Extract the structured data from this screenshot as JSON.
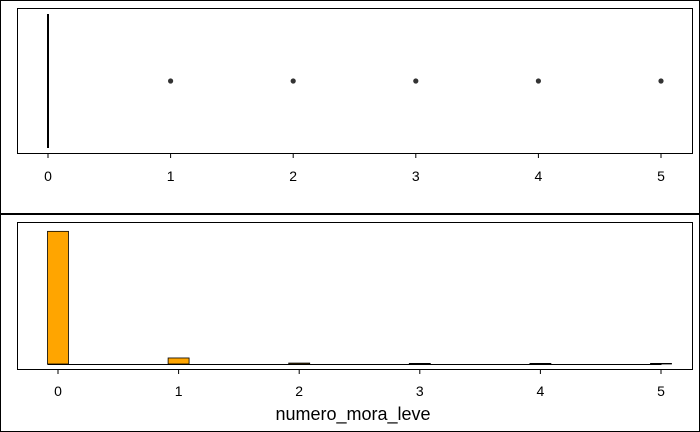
{
  "chart_data": [
    {
      "type": "boxplot",
      "orientation": "horizontal",
      "xlim": [
        -0.2,
        5.2
      ],
      "ticks": [
        "0",
        "1",
        "2",
        "3",
        "4",
        "5"
      ],
      "box": {
        "min": 0,
        "q1": 0,
        "median": 0,
        "q3": 0,
        "max": 0
      },
      "outliers": [
        1,
        2,
        3,
        4,
        5
      ],
      "title": "",
      "xlabel": "",
      "ylabel": ""
    },
    {
      "type": "bar",
      "subtype": "histogram",
      "categories": [
        "0",
        "1",
        "2",
        "3",
        "4",
        "5"
      ],
      "x": [
        0,
        1,
        2,
        3,
        4,
        5
      ],
      "values": [
        0.99,
        0.045,
        0.007,
        0.001,
        0.0005,
        0.0005
      ],
      "xlim": [
        -0.2,
        5.2
      ],
      "ylim": [
        0,
        1
      ],
      "ticks": [
        "0",
        "1",
        "2",
        "3",
        "4",
        "5"
      ],
      "bar_color": "#FFA500",
      "title": "",
      "xlabel": "numero_mora_leve",
      "ylabel": ""
    }
  ]
}
